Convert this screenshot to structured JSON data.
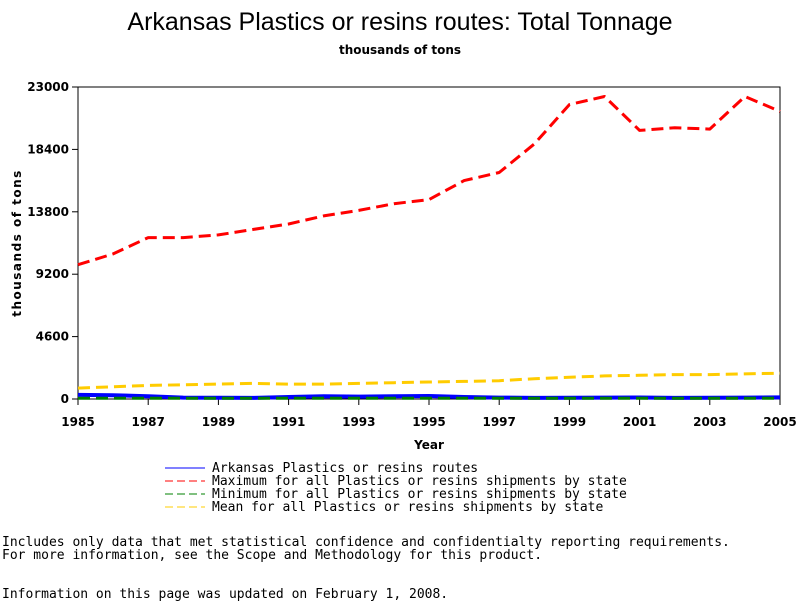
{
  "chart_data": {
    "type": "line",
    "title": "Arkansas Plastics or resins routes: Total Tonnage",
    "subtitle": "thousands of tons",
    "xlabel": "Year",
    "ylabel": "thousands of tons",
    "xlim": [
      1985,
      2005
    ],
    "ylim": [
      0,
      23000
    ],
    "x_ticks": [
      "1985",
      "1987",
      "1989",
      "1991",
      "1993",
      "1995",
      "1997",
      "1999",
      "2001",
      "2003",
      "2005"
    ],
    "y_ticks": [
      "0",
      "4600",
      "9200",
      "13800",
      "18400",
      "23000"
    ],
    "grid": false,
    "legend_position": "bottom",
    "x": [
      1985,
      1986,
      1987,
      1988,
      1989,
      1990,
      1991,
      1992,
      1993,
      1994,
      1995,
      1996,
      1997,
      1998,
      1999,
      2000,
      2001,
      2002,
      2003,
      2004,
      2005
    ],
    "series": [
      {
        "name": "Arkansas Plastics or resins routes",
        "color": "#0000ff",
        "dash": "solid",
        "values": [
          300,
          280,
          200,
          100,
          90,
          80,
          150,
          200,
          180,
          200,
          220,
          150,
          100,
          80,
          90,
          100,
          110,
          80,
          90,
          100,
          120
        ]
      },
      {
        "name": "Maximum for all Plastics or resins shipments by state",
        "color": "#ff0000",
        "dash": "dashed",
        "values": [
          9900,
          10700,
          11900,
          11900,
          12100,
          12500,
          12900,
          13500,
          13900,
          14400,
          14700,
          16100,
          16700,
          18800,
          21700,
          22300,
          19800,
          20000,
          19900,
          22300,
          21200
        ]
      },
      {
        "name": "Minimum for all Plastics or resins shipments by state",
        "color": "#008000",
        "dash": "dashed",
        "values": [
          50,
          50,
          50,
          50,
          50,
          50,
          50,
          50,
          50,
          50,
          50,
          50,
          50,
          50,
          50,
          50,
          50,
          50,
          50,
          50,
          50
        ]
      },
      {
        "name": "Mean for all Plastics or resins shipments by state",
        "color": "#ffcc00",
        "dash": "dashed",
        "values": [
          800,
          900,
          1000,
          1050,
          1100,
          1150,
          1100,
          1100,
          1150,
          1200,
          1250,
          1300,
          1350,
          1500,
          1600,
          1700,
          1750,
          1800,
          1800,
          1850,
          1900
        ]
      }
    ]
  },
  "notes": {
    "line1": "Includes only data that met statistical confidence and confidentialty reporting requirements.",
    "line2": "For more information, see the Scope and Methodology for this product.",
    "updated": "Information on this page was updated on February 1, 2008."
  }
}
